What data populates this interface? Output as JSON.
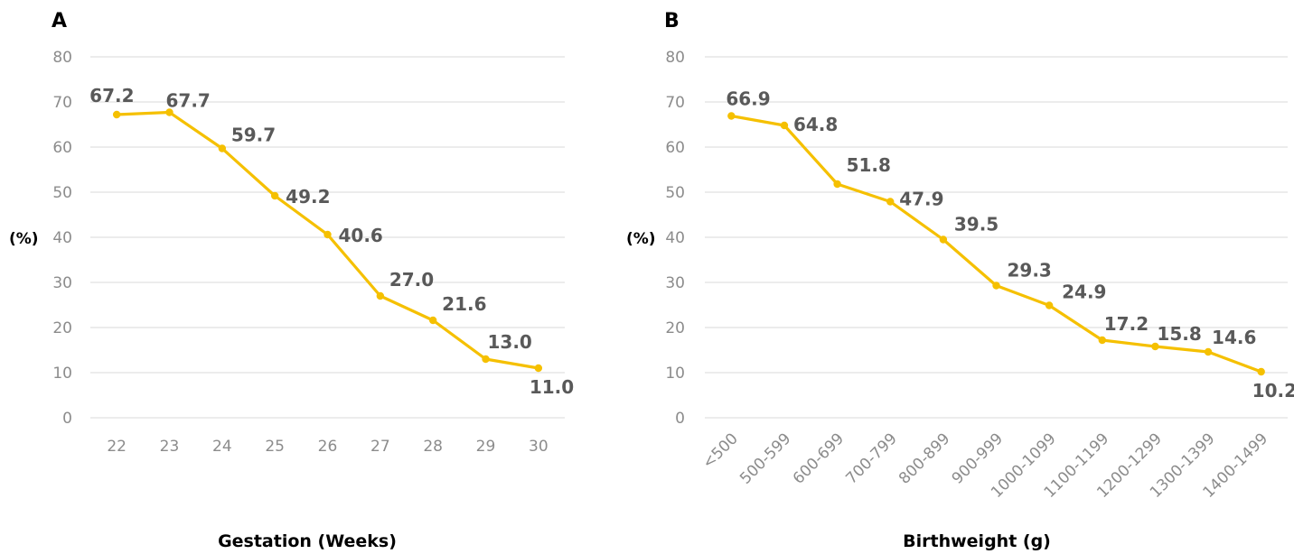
{
  "chart_data": [
    {
      "panel_letter": "A",
      "type": "line",
      "xlabel": "Gestation (Weeks)",
      "ylabel": "(%)",
      "ylim": [
        0,
        80
      ],
      "yticks": [
        "0",
        "10",
        "20",
        "30",
        "40",
        "50",
        "60",
        "70",
        "80"
      ],
      "grid": true,
      "categories": [
        "22",
        "23",
        "24",
        "25",
        "26",
        "27",
        "28",
        "29",
        "30"
      ],
      "series": [
        {
          "values": [
            67.2,
            67.7,
            59.7,
            49.2,
            40.6,
            27.0,
            21.6,
            13.0,
            11.0
          ],
          "labels": [
            "67.2",
            "67.7",
            "59.7",
            "49.2",
            "40.6",
            "27.0",
            "21.6",
            "13.0",
            "11.0"
          ],
          "color": "#f5c000"
        }
      ]
    },
    {
      "panel_letter": "B",
      "type": "line",
      "xlabel": "Birthweight (g)",
      "ylabel": "(%)",
      "ylim": [
        0,
        80
      ],
      "yticks": [
        "0",
        "10",
        "20",
        "30",
        "40",
        "50",
        "60",
        "70",
        "80"
      ],
      "grid": true,
      "categories": [
        "<500",
        "500-599",
        "600-699",
        "700-799",
        "800-899",
        "900-999",
        "1000-1099",
        "1100-1199",
        "1200-1299",
        "1300-1399",
        "1400-1499"
      ],
      "series": [
        {
          "values": [
            66.9,
            64.8,
            51.8,
            47.9,
            39.5,
            29.3,
            24.9,
            17.2,
            15.8,
            14.6,
            10.2
          ],
          "labels": [
            "66.9",
            "64.8",
            "51.8",
            "47.9",
            "39.5",
            "29.3",
            "24.9",
            "17.2",
            "15.8",
            "14.6",
            "10.2"
          ],
          "color": "#f5c000"
        }
      ]
    }
  ]
}
